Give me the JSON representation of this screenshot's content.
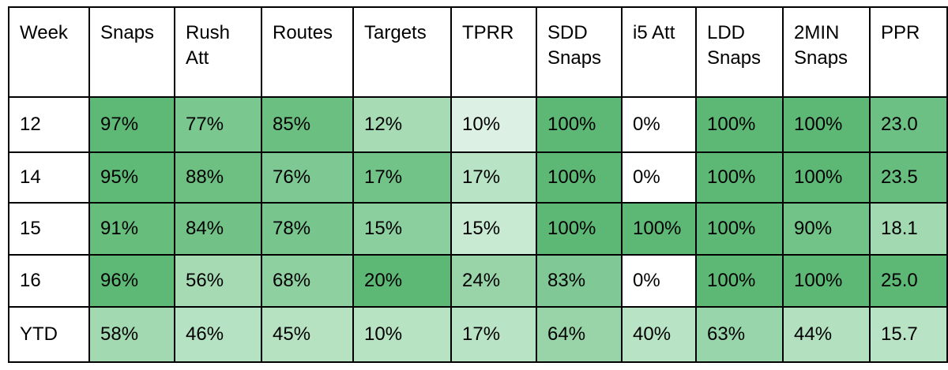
{
  "table": {
    "header": [
      "Week",
      "Snaps",
      "Rush Att",
      "Routes",
      "Targets",
      "TPRR",
      "SDD Snaps",
      "i5 Att",
      "LDD Snaps",
      "2MIN Snaps",
      "PPR"
    ],
    "rows": [
      [
        "12",
        "97%",
        "77%",
        "85%",
        "12%",
        "10%",
        "100%",
        "0%",
        "100%",
        "100%",
        "23.0"
      ],
      [
        "14",
        "95%",
        "88%",
        "76%",
        "17%",
        "17%",
        "100%",
        "0%",
        "100%",
        "100%",
        "23.5"
      ],
      [
        "15",
        "91%",
        "84%",
        "78%",
        "15%",
        "15%",
        "100%",
        "100%",
        "100%",
        "90%",
        "18.1"
      ],
      [
        "16",
        "96%",
        "56%",
        "68%",
        "20%",
        "24%",
        "83%",
        "0%",
        "100%",
        "100%",
        "25.0"
      ],
      [
        "YTD",
        "58%",
        "46%",
        "45%",
        "10%",
        "17%",
        "64%",
        "40%",
        "63%",
        "44%",
        "15.7"
      ]
    ],
    "cell_colors": [
      [
        "#ffffff",
        "#5db975",
        "#7ac790",
        "#6bbf80",
        "#a6dbb4",
        "#dcf1e3",
        "#5cb874",
        "#ffffff",
        "#5cb874",
        "#5cb874",
        "#6dc083"
      ],
      [
        "#ffffff",
        "#5fba77",
        "#6ebf82",
        "#7dc893",
        "#72c387",
        "#b9e3c5",
        "#5cb874",
        "#ffffff",
        "#5cb874",
        "#5cb874",
        "#66bd7d"
      ],
      [
        "#ffffff",
        "#66bd7c",
        "#72c288",
        "#78c58e",
        "#8ccf9f",
        "#c8e9d2",
        "#5cb874",
        "#5cb874",
        "#5cb874",
        "#72c387",
        "#a3d9b1"
      ],
      [
        "#ffffff",
        "#5eb976",
        "#a5dab3",
        "#8fd0a1",
        "#5cb874",
        "#99d4a9",
        "#80c895",
        "#ffffff",
        "#5cb874",
        "#5cb874",
        "#5cb874"
      ],
      [
        "#ffffff",
        "#a3d9b1",
        "#b5e2c2",
        "#b6e2c2",
        "#b7e3c3",
        "#b9e3c5",
        "#98d4a8",
        "#b8e3c4",
        "#99d5aa",
        "#b3e1c0",
        "#b8e3c4"
      ]
    ]
  }
}
